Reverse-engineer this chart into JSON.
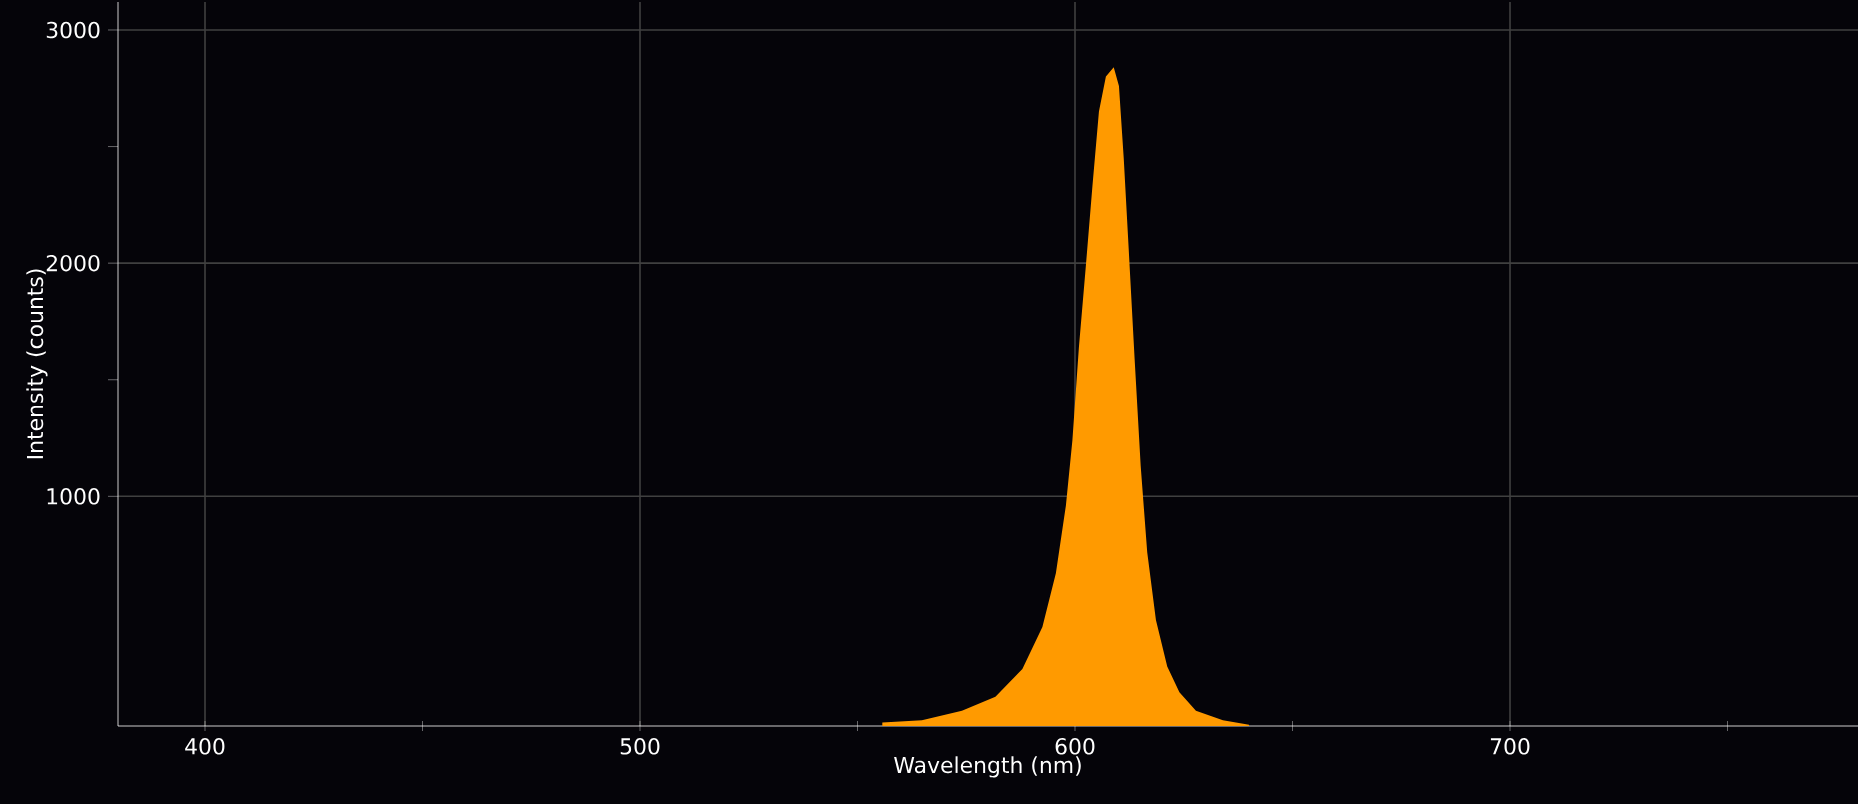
{
  "chart_data": {
    "type": "area",
    "xlabel": "Wavelength (nm)",
    "ylabel": "Intensity (counts)",
    "x": [
      555.7,
      564.8,
      574,
      581.7,
      587.9,
      592.5,
      595.6,
      597.9,
      599.4,
      600.9,
      602.5,
      604,
      605.5,
      607.1,
      608.9,
      610.1,
      611.2,
      612.4,
      613.7,
      615.1,
      616.6,
      618.6,
      621.2,
      624,
      627.8,
      634,
      640
    ],
    "series": [
      {
        "color": "#ff9a00",
        "values": [
          30,
          40,
          80,
          140,
          260,
          440,
          670,
          960,
          1240,
          1640,
          1990,
          2330,
          2650,
          2800,
          2840,
          2760,
          2450,
          2040,
          1590,
          1130,
          760,
          470,
          270,
          160,
          80,
          40,
          20
        ]
      }
    ],
    "xlim": [
      380,
      780
    ],
    "ylim": [
      15,
      3120
    ],
    "xticks": [
      400,
      {
        "value": 450,
        "label": null
      },
      500,
      {
        "value": 550,
        "label": null
      },
      600,
      {
        "value": 650,
        "label": null
      },
      700,
      {
        "value": 750,
        "label": null
      }
    ],
    "yticks": [
      1000,
      {
        "value": 1500,
        "label": null
      },
      2000,
      {
        "value": 2500,
        "label": null
      },
      3000
    ],
    "grid": true
  }
}
